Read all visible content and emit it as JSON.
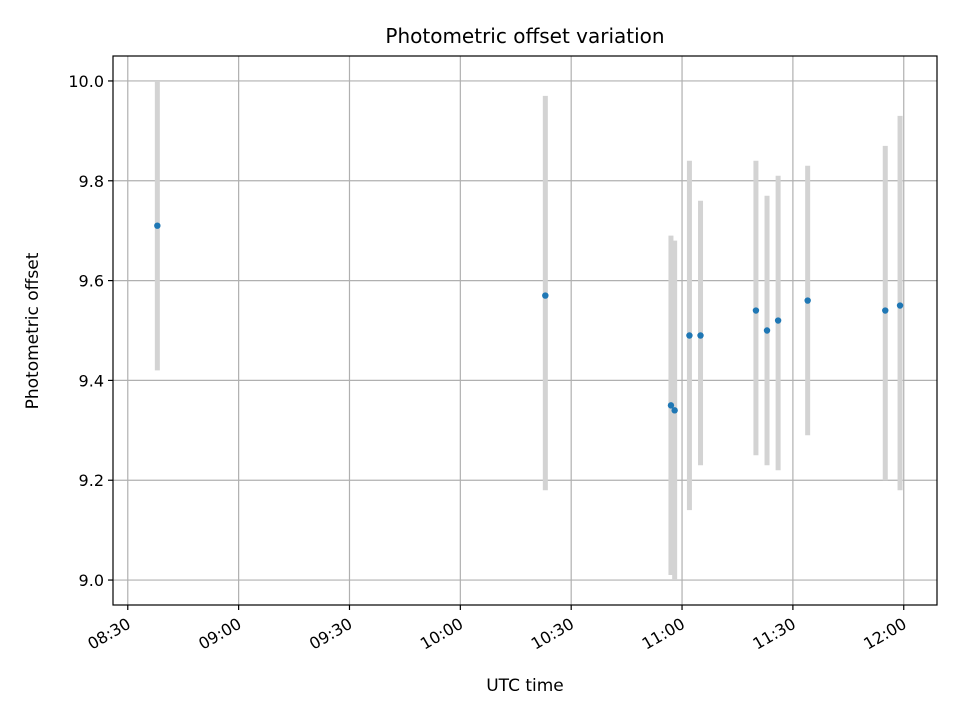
{
  "chart_data": {
    "type": "scatter",
    "title": "Photometric offset variation",
    "xlabel": "UTC time",
    "ylabel": "Photometric offset",
    "xlim": [
      "08:26",
      "12:09"
    ],
    "ylim": [
      8.95,
      10.05
    ],
    "x_ticks": [
      "08:30",
      "09:00",
      "09:30",
      "10:00",
      "10:30",
      "11:00",
      "11:30",
      "12:00"
    ],
    "y_ticks": [
      "9.0",
      "9.2",
      "9.4",
      "9.6",
      "9.8",
      "10.0"
    ],
    "grid": true,
    "marker_color": "#1f77b4",
    "errorbar_color": "#d3d3d3",
    "series": [
      {
        "points": [
          {
            "time": "08:38",
            "value": 9.71,
            "low": 9.42,
            "high": 10.0
          },
          {
            "time": "10:23",
            "value": 9.57,
            "low": 9.18,
            "high": 9.97
          },
          {
            "time": "10:57",
            "value": 9.35,
            "low": 9.01,
            "high": 9.69
          },
          {
            "time": "10:58",
            "value": 9.34,
            "low": 9.0,
            "high": 9.68
          },
          {
            "time": "11:02",
            "value": 9.49,
            "low": 9.14,
            "high": 9.84
          },
          {
            "time": "11:05",
            "value": 9.49,
            "low": 9.23,
            "high": 9.76
          },
          {
            "time": "11:20",
            "value": 9.54,
            "low": 9.25,
            "high": 9.84
          },
          {
            "time": "11:23",
            "value": 9.5,
            "low": 9.23,
            "high": 9.77
          },
          {
            "time": "11:26",
            "value": 9.52,
            "low": 9.22,
            "high": 9.81
          },
          {
            "time": "11:34",
            "value": 9.56,
            "low": 9.29,
            "high": 9.83
          },
          {
            "time": "11:55",
            "value": 9.54,
            "low": 9.2,
            "high": 9.87
          },
          {
            "time": "11:59",
            "value": 9.55,
            "low": 9.18,
            "high": 9.93
          }
        ]
      }
    ]
  }
}
